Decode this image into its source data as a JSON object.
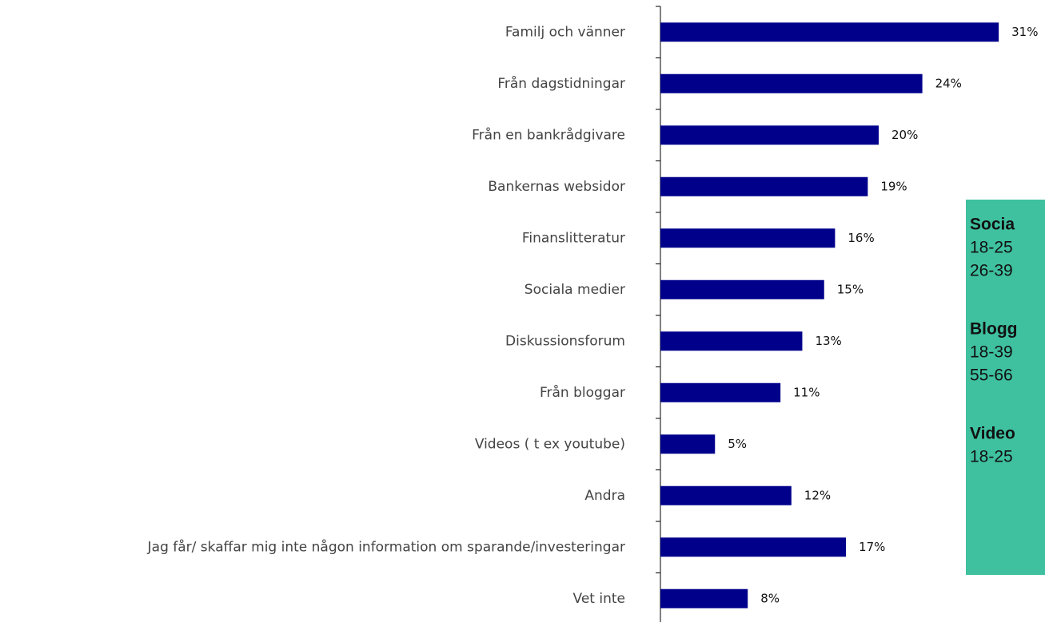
{
  "chart_data": {
    "type": "bar",
    "orientation": "horizontal",
    "color": "#00008b",
    "categories": [
      "Familj och vänner",
      "Från dagstidningar",
      "Från en bankrådgivare",
      "Bankernas websidor",
      "Finanslitteratur",
      "Sociala medier",
      "Diskussionsforum",
      "Från bloggar",
      "Videos ( t ex youtube)",
      "Andra",
      "Jag får/ skaffar mig inte någon information om sparande/investeringar",
      "Vet inte"
    ],
    "values": [
      31,
      24,
      20,
      19,
      16,
      15,
      13,
      11,
      5,
      12,
      17,
      8
    ],
    "value_labels": [
      "31%",
      "24%",
      "20%",
      "19%",
      "16%",
      "15%",
      "13%",
      "11%",
      "5%",
      "12%",
      "17%",
      "8%"
    ]
  },
  "annotation_box": {
    "color": "#3fc1a0",
    "groups": [
      {
        "heading": "Socia",
        "lines": [
          "18-25",
          "26-39"
        ]
      },
      {
        "heading": "Blogg",
        "lines": [
          "18-39",
          "55-66"
        ]
      },
      {
        "heading": "Video",
        "lines": [
          "18-25"
        ]
      }
    ]
  }
}
